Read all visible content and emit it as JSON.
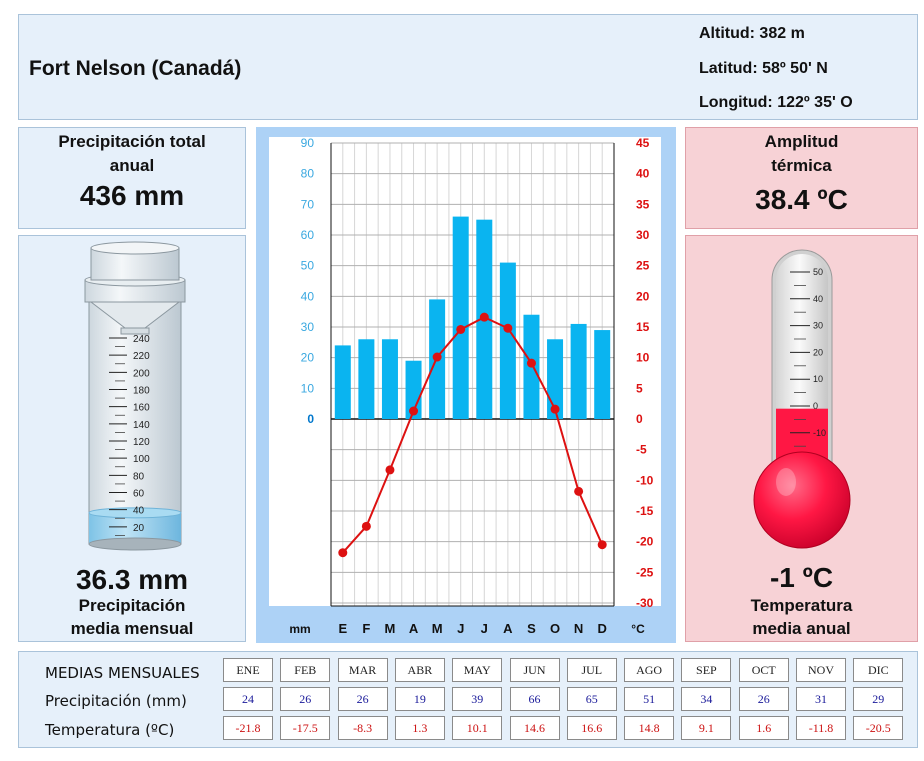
{
  "header": {
    "station": "Fort Nelson (Canadá)",
    "altitude": "Altitud: 382 m",
    "latitude": "Latitud: 58º 50' N",
    "longitude": "Longitud: 122º 35' O"
  },
  "precip_total": {
    "label_line1": "Precipitación total",
    "label_line2": "anual",
    "value": "436 mm"
  },
  "precip_mean": {
    "value": "36.3 mm",
    "label_line1": "Precipitación",
    "label_line2": "media mensual",
    "gauge_ticks": [
      "240",
      "220",
      "200",
      "180",
      "160",
      "140",
      "120",
      "100",
      "80",
      "60",
      "40",
      "20"
    ],
    "gauge_level_mm": 36.3
  },
  "amplitude": {
    "label_line1": "Amplitud",
    "label_line2": "térmica",
    "value": "38.4 ºC"
  },
  "temp_mean": {
    "value": "-1 ºC",
    "label_line1": "Temperatura",
    "label_line2": "media anual",
    "thermo_ticks": [
      "50",
      "40",
      "30",
      "20",
      "10",
      "0",
      "-10"
    ],
    "thermo_level_c": -1
  },
  "chart_data": {
    "type": "bar+line",
    "categories": [
      "E",
      "F",
      "M",
      "A",
      "M",
      "J",
      "J",
      "A",
      "S",
      "O",
      "N",
      "D"
    ],
    "series": [
      {
        "values": [
          24,
          26,
          26,
          19,
          39,
          66,
          65,
          51,
          34,
          26,
          31,
          29
        ],
        "axis": "left",
        "kind": "bar",
        "color": "#0ab4f0"
      },
      {
        "values": [
          -21.8,
          -17.5,
          -8.3,
          1.3,
          10.1,
          14.6,
          16.6,
          14.8,
          9.1,
          1.6,
          -11.8,
          -20.5
        ],
        "axis": "right",
        "kind": "line",
        "color": "#dd1111"
      }
    ],
    "left_axis": {
      "label": "mm",
      "ticks": [
        "90",
        "80",
        "70",
        "60",
        "50",
        "40",
        "30",
        "20",
        "10",
        "0"
      ],
      "range": [
        0,
        90
      ]
    },
    "right_axis": {
      "label": "°C",
      "ticks": [
        "45",
        "40",
        "35",
        "30",
        "25",
        "20",
        "15",
        "10",
        "5",
        "0",
        "-5",
        "-10",
        "-15",
        "-20",
        "-25",
        "-30"
      ],
      "range": [
        -30,
        45
      ]
    },
    "grid": true
  },
  "table": {
    "title": "MEDIAS MENSUALES",
    "months": [
      "ENE",
      "FEB",
      "MAR",
      "ABR",
      "MAY",
      "JUN",
      "JUL",
      "AGO",
      "SEP",
      "OCT",
      "NOV",
      "DIC"
    ],
    "precip_label": "Precipitación (mm)",
    "precip": [
      "24",
      "26",
      "26",
      "19",
      "39",
      "66",
      "65",
      "51",
      "34",
      "26",
      "31",
      "29"
    ],
    "temp_label": "Temperatura (ºC)",
    "temp": [
      "-21.8",
      "-17.5",
      "-8.3",
      "1.3",
      "10.1",
      "14.6",
      "16.6",
      "14.8",
      "9.1",
      "1.6",
      "-11.8",
      "-20.5"
    ]
  },
  "colors": {
    "panel_blue": "#e6f0fa",
    "panel_pink": "#f7d2d6",
    "bar": "#0ab4f0",
    "line": "#dd1111",
    "water": "#9fd3ee",
    "mercury": "#ff1744"
  }
}
